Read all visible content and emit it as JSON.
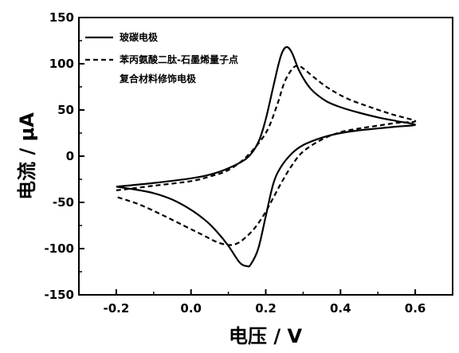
{
  "chart_data": {
    "type": "line",
    "title": "",
    "xlabel": "电压 / V",
    "ylabel": "电流 / μA",
    "xlim": [
      -0.3,
      0.7
    ],
    "ylim": [
      -150,
      150
    ],
    "x_ticks": [
      -0.2,
      0.0,
      0.2,
      0.4,
      0.6
    ],
    "x_tick_labels": [
      "-0.2",
      "0.0",
      "0.2",
      "0.4",
      "0.6"
    ],
    "y_ticks": [
      -150,
      -100,
      -50,
      0,
      50,
      100,
      150
    ],
    "y_tick_labels": [
      "-150",
      "-100",
      "-50",
      "0",
      "50",
      "100",
      "150"
    ],
    "grid": false,
    "legend_position": "top-left",
    "series": [
      {
        "name": "玻碳电极",
        "style": "solid",
        "color": "#000000",
        "points": [
          [
            -0.2,
            -33
          ],
          [
            -0.1,
            -29
          ],
          [
            0.0,
            -24
          ],
          [
            0.05,
            -20
          ],
          [
            0.1,
            -13
          ],
          [
            0.15,
            -2
          ],
          [
            0.18,
            15
          ],
          [
            0.2,
            40
          ],
          [
            0.22,
            75
          ],
          [
            0.24,
            108
          ],
          [
            0.255,
            118
          ],
          [
            0.27,
            112
          ],
          [
            0.29,
            92
          ],
          [
            0.32,
            73
          ],
          [
            0.36,
            60
          ],
          [
            0.4,
            53
          ],
          [
            0.45,
            47
          ],
          [
            0.5,
            42
          ],
          [
            0.55,
            38
          ],
          [
            0.6,
            34
          ],
          [
            0.55,
            32
          ],
          [
            0.5,
            30
          ],
          [
            0.45,
            28
          ],
          [
            0.4,
            25
          ],
          [
            0.35,
            20
          ],
          [
            0.3,
            12
          ],
          [
            0.27,
            3
          ],
          [
            0.24,
            -12
          ],
          [
            0.22,
            -30
          ],
          [
            0.2,
            -65
          ],
          [
            0.18,
            -100
          ],
          [
            0.16,
            -117
          ],
          [
            0.15,
            -119
          ],
          [
            0.13,
            -115
          ],
          [
            0.1,
            -97
          ],
          [
            0.07,
            -82
          ],
          [
            0.04,
            -70
          ],
          [
            0.0,
            -58
          ],
          [
            -0.05,
            -47
          ],
          [
            -0.1,
            -40
          ],
          [
            -0.15,
            -36
          ],
          [
            -0.2,
            -33
          ]
        ]
      },
      {
        "name": "苯丙氨酸二肽-石墨烯量子点",
        "name_line2": "复合材料修饰电极",
        "style": "dashed",
        "color": "#000000",
        "points": [
          [
            -0.2,
            -37
          ],
          [
            -0.1,
            -32
          ],
          [
            0.0,
            -27
          ],
          [
            0.05,
            -22
          ],
          [
            0.1,
            -15
          ],
          [
            0.15,
            0
          ],
          [
            0.2,
            25
          ],
          [
            0.23,
            55
          ],
          [
            0.25,
            80
          ],
          [
            0.27,
            94
          ],
          [
            0.285,
            98
          ],
          [
            0.3,
            95
          ],
          [
            0.33,
            85
          ],
          [
            0.37,
            73
          ],
          [
            0.42,
            62
          ],
          [
            0.48,
            53
          ],
          [
            0.54,
            45
          ],
          [
            0.6,
            38
          ],
          [
            0.55,
            36
          ],
          [
            0.5,
            33
          ],
          [
            0.45,
            30
          ],
          [
            0.4,
            26
          ],
          [
            0.35,
            18
          ],
          [
            0.3,
            5
          ],
          [
            0.27,
            -10
          ],
          [
            0.24,
            -30
          ],
          [
            0.2,
            -60
          ],
          [
            0.17,
            -78
          ],
          [
            0.14,
            -90
          ],
          [
            0.12,
            -95
          ],
          [
            0.1,
            -96
          ],
          [
            0.07,
            -93
          ],
          [
            0.03,
            -85
          ],
          [
            -0.02,
            -75
          ],
          [
            -0.08,
            -63
          ],
          [
            -0.14,
            -52
          ],
          [
            -0.2,
            -44
          ]
        ]
      }
    ]
  }
}
